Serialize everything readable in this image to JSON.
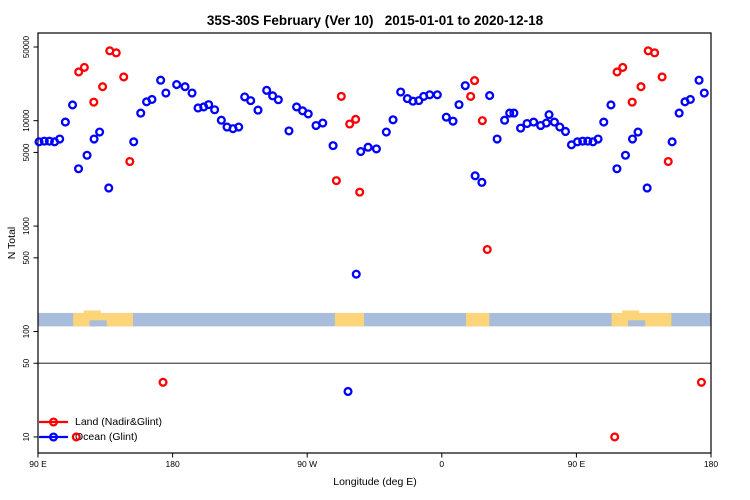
{
  "chart_data": {
    "type": "scatter",
    "title": "35S-30S February (Ver 10)   2015-01-01 to 2020-12-18",
    "xlabel": "Longitude (deg E)",
    "ylabel": "N Total",
    "x_axis": {
      "domain": [
        90,
        540
      ],
      "ticks": [
        {
          "value": 90,
          "label": "90 E"
        },
        {
          "value": 180,
          "label": "180"
        },
        {
          "value": 270,
          "label": "90 W"
        },
        {
          "value": 360,
          "label": "0"
        },
        {
          "value": 450,
          "label": "90 E"
        },
        {
          "value": 540,
          "label": "180"
        }
      ]
    },
    "y_axis": {
      "scale": "log",
      "domain": [
        7,
        68000
      ],
      "ticks": [
        50000,
        10000,
        5000,
        1000,
        500,
        100,
        50,
        10
      ]
    },
    "wrap_rule": {
      "note": "longitudes 90-180 are plotted twice (at lon and lon+360)",
      "duplicate_range": [
        90,
        180
      ]
    },
    "reference_line_y": 50,
    "legend_position": "bottom-left",
    "series": [
      {
        "name": "Land (Nadir&Glint)",
        "color": "#ff0000",
        "marker": "open-circle",
        "points": [
          [
            19.3,
            17000
          ],
          [
            21.9,
            24000
          ],
          [
            27.1,
            10000
          ],
          [
            30.4,
            600
          ],
          [
            115.6,
            10
          ],
          [
            117.2,
            29000
          ],
          [
            121.0,
            32000
          ],
          [
            127.3,
            15000
          ],
          [
            133.2,
            21000
          ],
          [
            138.0,
            46000
          ],
          [
            142.3,
            44000
          ],
          [
            147.3,
            26000
          ],
          [
            151.4,
            4100
          ],
          [
            173.6,
            33
          ],
          [
            289.5,
            2700
          ],
          [
            292.8,
            17000
          ],
          [
            298.4,
            9300
          ],
          [
            302.4,
            10300
          ],
          [
            305.1,
            2100
          ]
        ]
      },
      {
        "name": "Ocean (Glint)",
        "color": "#0000ff",
        "marker": "open-circle",
        "points": [
          [
            3.0,
            10800
          ],
          [
            7.5,
            9900
          ],
          [
            11.5,
            14200
          ],
          [
            15.7,
            21500
          ],
          [
            22.3,
            3000
          ],
          [
            26.8,
            2600
          ],
          [
            32.0,
            17300
          ],
          [
            37.0,
            6700
          ],
          [
            42.0,
            10100
          ],
          [
            45.4,
            11800
          ],
          [
            48.2,
            11800
          ],
          [
            52.7,
            8500
          ],
          [
            57.0,
            9400
          ],
          [
            61.4,
            9700
          ],
          [
            66.1,
            9000
          ],
          [
            69.9,
            9500
          ],
          [
            71.7,
            11400
          ],
          [
            75.3,
            9700
          ],
          [
            78.9,
            8700
          ],
          [
            82.7,
            7900
          ],
          [
            86.7,
            5900
          ],
          [
            90.7,
            6300
          ],
          [
            94.2,
            6400
          ],
          [
            97.6,
            6400
          ],
          [
            101.1,
            6300
          ],
          [
            104.5,
            6700
          ],
          [
            108.3,
            9700
          ],
          [
            113.1,
            14100
          ],
          [
            117.1,
            3500
          ],
          [
            122.8,
            4700
          ],
          [
            127.5,
            6700
          ],
          [
            131.2,
            7800
          ],
          [
            137.3,
            2300
          ],
          [
            154.0,
            6300
          ],
          [
            158.7,
            11800
          ],
          [
            162.6,
            15100
          ],
          [
            166.2,
            15900
          ],
          [
            172.0,
            24200
          ],
          [
            175.5,
            18300
          ],
          [
            182.7,
            22000
          ],
          [
            188.3,
            21000
          ],
          [
            193.0,
            18300
          ],
          [
            197.0,
            13200
          ],
          [
            200.8,
            13500
          ],
          [
            204.1,
            14200
          ],
          [
            208.1,
            12700
          ],
          [
            212.6,
            10100
          ],
          [
            216.4,
            8700
          ],
          [
            220.4,
            8400
          ],
          [
            224.2,
            8700
          ],
          [
            228.2,
            16800
          ],
          [
            232.2,
            15500
          ],
          [
            237.1,
            12600
          ],
          [
            242.9,
            19400
          ],
          [
            246.9,
            17200
          ],
          [
            250.7,
            15800
          ],
          [
            257.8,
            8000
          ],
          [
            262.9,
            13500
          ],
          [
            266.9,
            12400
          ],
          [
            270.7,
            11600
          ],
          [
            275.9,
            9000
          ],
          [
            280.4,
            9500
          ],
          [
            287.3,
            5800
          ],
          [
            297.3,
            27
          ],
          [
            302.8,
            350
          ],
          [
            305.8,
            5100
          ],
          [
            310.7,
            5600
          ],
          [
            316.3,
            5400
          ],
          [
            322.9,
            7800
          ],
          [
            327.4,
            10200
          ],
          [
            332.5,
            18700
          ],
          [
            337.0,
            16200
          ],
          [
            340.7,
            15300
          ],
          [
            344.6,
            15500
          ],
          [
            347.9,
            17000
          ],
          [
            351.9,
            17600
          ],
          [
            357.0,
            17600
          ]
        ]
      }
    ],
    "map_band": {
      "description": "coastline strip for the 35S-30S latitude band",
      "value_range": [
        112,
        150
      ],
      "ocean_color": "#a8bcdc",
      "land_color": "#fcd47a",
      "land_patches": [
        {
          "name": "Australia",
          "lon": [
            113.5,
            153.5
          ]
        },
        {
          "name": "South America",
          "lon": [
            288.5,
            308.0
          ]
        },
        {
          "name": "Southern Africa",
          "lon": [
            16.2,
            31.8
          ]
        }
      ],
      "coast_notches": [
        {
          "name": "Great Australian Bight",
          "lon": [
            124.5,
            136.0
          ]
        }
      ],
      "coast_bumps": [
        {
          "lon": [
            120.5,
            132.0
          ]
        }
      ]
    }
  }
}
